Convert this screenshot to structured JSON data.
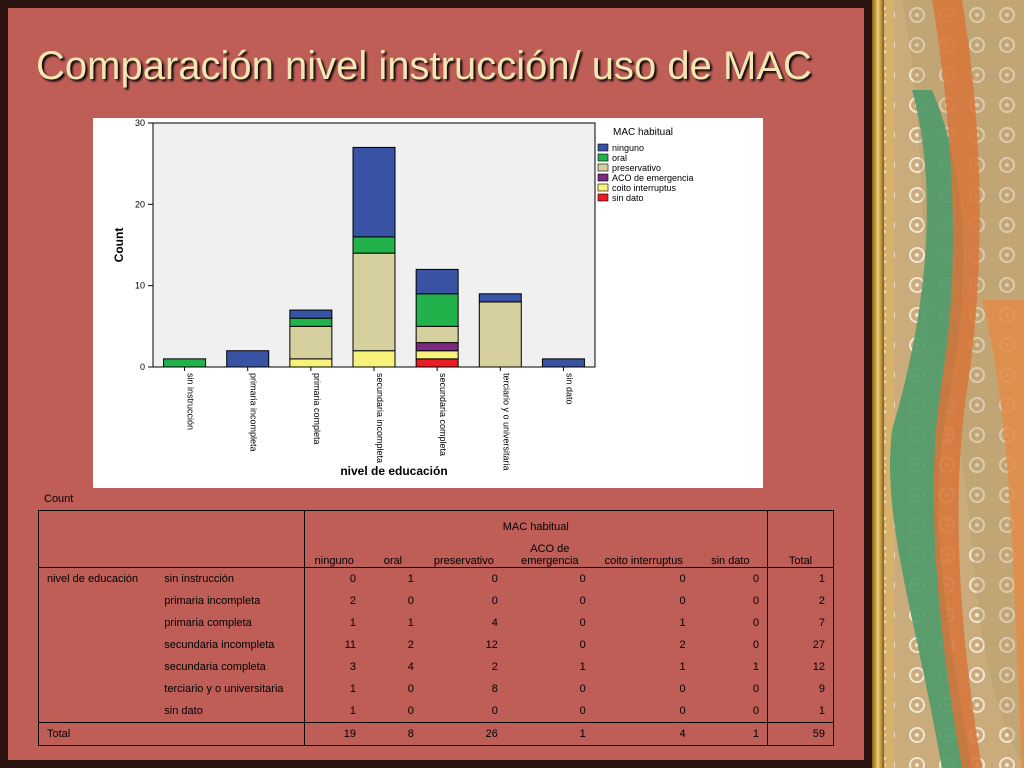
{
  "title": "Comparación nivel instrucción/ uso de MAC",
  "chart_data": {
    "type": "bar",
    "stacked": true,
    "xlabel": "nivel de educación",
    "ylabel": "Count",
    "ylim": [
      0,
      30
    ],
    "yticks": [
      0,
      10,
      20,
      30
    ],
    "legend_title": "MAC habitual",
    "legend_position": "right",
    "categories": [
      "sin instrucción",
      "primaria incompleta",
      "primaria completa",
      "secundaria incompleta",
      "secundaria completa",
      "terciario y o universitaria",
      "sin dato"
    ],
    "series": [
      {
        "name": "ninguno",
        "color": "#3953a4",
        "values": [
          0,
          2,
          1,
          11,
          3,
          1,
          1
        ]
      },
      {
        "name": "oral",
        "color": "#21b24b",
        "values": [
          1,
          0,
          1,
          2,
          4,
          0,
          0
        ]
      },
      {
        "name": "preservativo",
        "color": "#d6cf9e",
        "values": [
          0,
          0,
          4,
          12,
          2,
          8,
          0
        ]
      },
      {
        "name": "ACO de emergencia",
        "color": "#7b2a80",
        "values": [
          0,
          0,
          0,
          0,
          1,
          0,
          0
        ]
      },
      {
        "name": "coito interruptus",
        "color": "#f7f27a",
        "values": [
          0,
          0,
          1,
          2,
          1,
          0,
          0
        ]
      },
      {
        "name": "sin dato",
        "color": "#ec1c24",
        "values": [
          0,
          0,
          0,
          0,
          1,
          0,
          0
        ]
      }
    ]
  },
  "table": {
    "count_label": "Count",
    "group_header": "MAC habitual",
    "columns": [
      "ninguno",
      "oral",
      "preservativo",
      "ACO de emergencia",
      "coito interruptus",
      "sin dato"
    ],
    "total_header": "Total",
    "row_group_label": "nivel de educación",
    "rows": [
      {
        "label": "sin instrucción",
        "values": [
          "0",
          "1",
          "0",
          "0",
          "0",
          "0"
        ],
        "total": "1"
      },
      {
        "label": "primaria incompleta",
        "values": [
          "2",
          "0",
          "0",
          "0",
          "0",
          "0"
        ],
        "total": "2"
      },
      {
        "label": "primaria completa",
        "values": [
          "1",
          "1",
          "4",
          "0",
          "1",
          "0"
        ],
        "total": "7"
      },
      {
        "label": "secundaria incompleta",
        "values": [
          "11",
          "2",
          "12",
          "0",
          "2",
          "0"
        ],
        "total": "27"
      },
      {
        "label": "secundaria completa",
        "values": [
          "3",
          "4",
          "2",
          "1",
          "1",
          "1"
        ],
        "total": "12"
      },
      {
        "label": "terciario y o universitaria",
        "values": [
          "1",
          "0",
          "8",
          "0",
          "0",
          "0"
        ],
        "total": "9"
      },
      {
        "label": "sin dato",
        "values": [
          "1",
          "0",
          "0",
          "0",
          "0",
          "0"
        ],
        "total": "1"
      }
    ],
    "total_row_label": "Total",
    "total_values": [
      "19",
      "8",
      "26",
      "1",
      "4",
      "1"
    ],
    "grand_total": "59"
  }
}
